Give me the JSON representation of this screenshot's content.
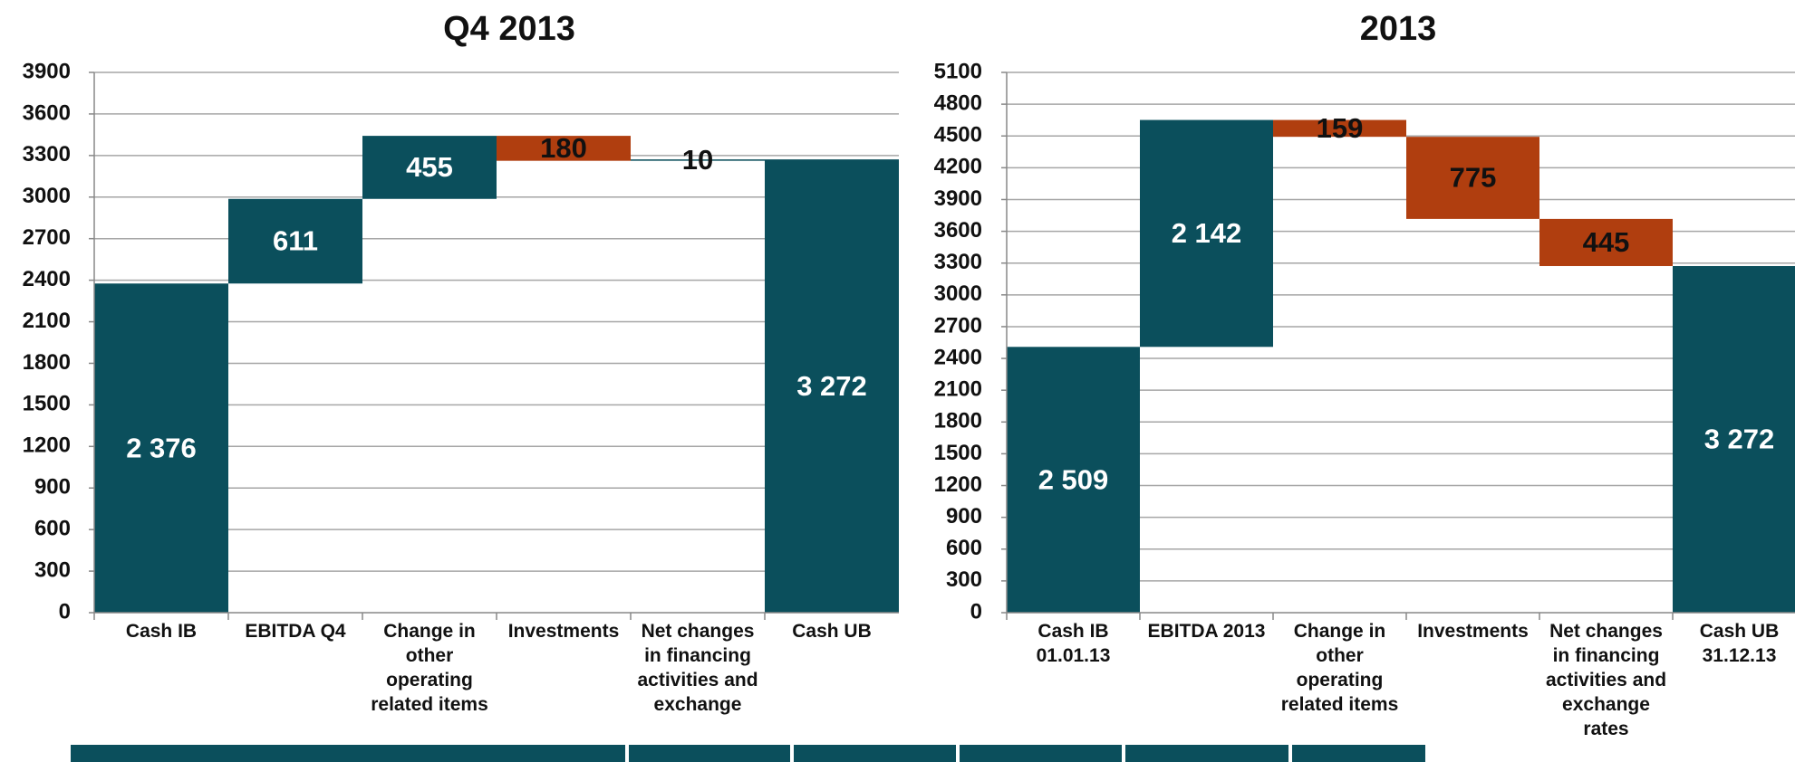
{
  "chart_data": [
    {
      "type": "waterfall",
      "title": "Q4 2013",
      "categories": [
        "Cash IB",
        "EBITDA Q4",
        "Change in other operating related items",
        "Investments",
        "Net changes in financing activities and exchange",
        "Cash UB"
      ],
      "measures": [
        "absolute",
        "relative",
        "relative",
        "relative",
        "relative",
        "total"
      ],
      "values": [
        2376,
        611,
        455,
        -180,
        10,
        3272
      ],
      "value_labels": [
        "2 376",
        "611",
        "455",
        "180",
        "10",
        "3 272"
      ],
      "colors": {
        "increase": "#0b4f5c",
        "decrease": "#b03e0f",
        "total": "#0b4f5c"
      },
      "ylim": [
        0,
        3900
      ],
      "yticks": [
        0,
        300,
        600,
        900,
        1200,
        1500,
        1800,
        2100,
        2400,
        2700,
        3000,
        3300,
        3600,
        3900
      ],
      "grid": true
    },
    {
      "type": "waterfall",
      "title": "2013",
      "categories": [
        "Cash IB 01.01.13",
        "EBITDA 2013",
        "Change in other operating related items",
        "Investments",
        "Net changes in financing activities and exchange rates",
        "Cash UB 31.12.13"
      ],
      "measures": [
        "absolute",
        "relative",
        "relative",
        "relative",
        "relative",
        "total"
      ],
      "values": [
        2509,
        2142,
        -159,
        -775,
        -445,
        3272
      ],
      "value_labels": [
        "2 509",
        "2 142",
        "159",
        "775",
        "445",
        "3 272"
      ],
      "colors": {
        "increase": "#0b4f5c",
        "decrease": "#b03e0f",
        "total": "#0b4f5c"
      },
      "ylim": [
        0,
        5100
      ],
      "yticks": [
        0,
        300,
        600,
        900,
        1200,
        1500,
        1800,
        2100,
        2400,
        2700,
        3000,
        3300,
        3600,
        3900,
        4200,
        4500,
        4800,
        5100
      ],
      "grid": true
    }
  ]
}
